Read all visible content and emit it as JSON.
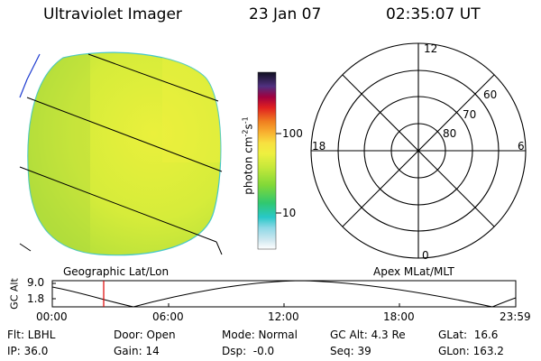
{
  "header": {
    "instrument": "Ultraviolet Imager",
    "date": "23 Jan 07",
    "time": "02:35:07 UT"
  },
  "colorbar": {
    "unit": "photon cm",
    "unit_exp1": "-2",
    "unit_s": "s",
    "unit_exp2": "-1",
    "ticks": [
      "100",
      "10"
    ]
  },
  "polar_plot": {
    "mlt_labels": [
      "12",
      "18",
      "6",
      "0"
    ],
    "lat_labels": [
      "60",
      "70",
      "80"
    ]
  },
  "left_panel_label": "Geographic Lat/Lon",
  "right_panel_label": "Apex MLat/MLT",
  "altitude_plot": {
    "ylabel": "GC Alt",
    "yticks": [
      "9.0",
      "1.8"
    ],
    "xticks": [
      "00:00",
      "06:00",
      "12:00",
      "18:00",
      "23:59"
    ]
  },
  "status": {
    "flt": "Flt: LBHL",
    "ip": "IP: 36.0",
    "door": "Door: Open",
    "gain": "Gain: 14",
    "mode": "Mode: Normal",
    "dsp": "Dsp:  -0.0",
    "gcalt": "GC Alt: 4.3 Re",
    "seq": "Seq: 39",
    "glat": "GLat:  16.6",
    "glon": "GLon: 163.2"
  },
  "colors": {
    "disk_green": "#c8e83a",
    "disk_yellow": "#e6ee3c",
    "disk_edge": "#46c8c8",
    "marker_red": "#dd0000",
    "accent_blue": "#1e3cd0"
  }
}
